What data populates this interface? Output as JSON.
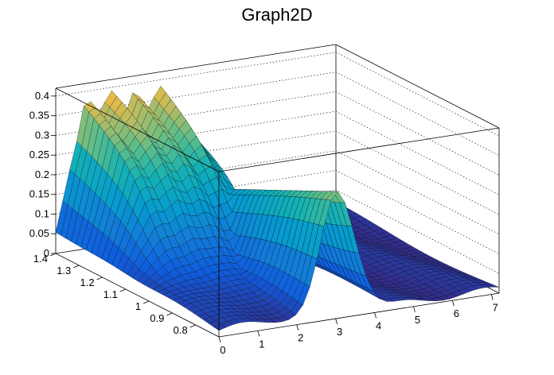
{
  "chart_data": {
    "type": "surface",
    "title": "Graph2D",
    "xlabel": "",
    "ylabel": "",
    "zlabel": "",
    "xlim": [
      0,
      7.2
    ],
    "ylim": [
      0.7,
      1.4
    ],
    "zlim": [
      0,
      0.42
    ],
    "x_ticks": [
      0,
      1,
      2,
      3,
      4,
      5,
      6,
      7
    ],
    "y_ticks": [
      0.8,
      0.9,
      1.0,
      1.1,
      1.2,
      1.3,
      1.4
    ],
    "y_tick_labels": [
      "0.8",
      "0.9",
      "1",
      "1.1",
      "1.2",
      "1.3",
      "1.4"
    ],
    "z_ticks": [
      0,
      0.05,
      0.1,
      0.15,
      0.2,
      0.25,
      0.3,
      0.35,
      0.4
    ],
    "z_tick_labels": [
      "0",
      "0.05",
      "0.1",
      "0.15",
      "0.2",
      "0.25",
      "0.3",
      "0.35",
      "0.4"
    ],
    "grid": true,
    "colormap": "viridis-like",
    "colors": {
      "low": "#352a87",
      "mid": "#21b3a6",
      "high": "#f9fb0e",
      "mesh": "#000000"
    }
  }
}
